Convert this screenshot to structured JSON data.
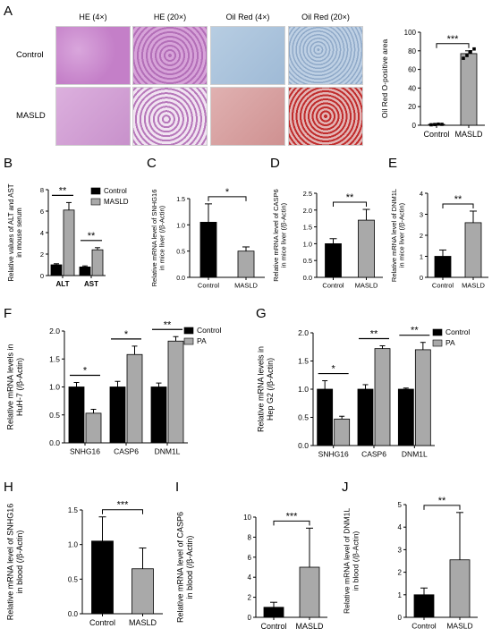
{
  "panel_letters": [
    "A",
    "B",
    "C",
    "D",
    "E",
    "F",
    "G",
    "H",
    "I",
    "J"
  ],
  "histology": {
    "columns": [
      "HE (4×)",
      "HE (20×)",
      "Oil Red (4×)",
      "Oil Red (20×)"
    ],
    "rows": [
      "Control",
      "MASLD"
    ],
    "colors": {
      "he": "#c47fc8",
      "he_dark": "#a25ea8",
      "oil_control": "#a9c3dc",
      "oil_masld": "#d9a0a0",
      "oil_masld_dot": "#c33535"
    }
  },
  "style": {
    "control_color": "#000000",
    "treated_color": "#a9a9a9"
  },
  "chart_data": [
    {
      "id": "A",
      "type": "bar",
      "categories": [
        "Control",
        "MASLD"
      ],
      "values": [
        1,
        77
      ],
      "errors": [
        0.3,
        3
      ],
      "points": [
        [
          0.5,
          0.8,
          1.2,
          1.0
        ],
        [
          72,
          75,
          79,
          82
        ]
      ],
      "ylabel": "Oil Red O-positive area",
      "ylim": [
        0,
        100
      ],
      "yticks": [
        0,
        20,
        40,
        60,
        80,
        100
      ],
      "significance": [
        {
          "from": 0,
          "to": 1,
          "label": "***"
        }
      ]
    },
    {
      "id": "B",
      "type": "bar",
      "categories": [
        "ALT",
        "AST"
      ],
      "series": [
        {
          "name": "Control",
          "values": [
            1.0,
            0.8
          ],
          "errors": [
            0.1,
            0.1
          ]
        },
        {
          "name": "MASLD",
          "values": [
            6.1,
            2.4
          ],
          "errors": [
            0.7,
            0.2
          ]
        }
      ],
      "ylabel": "Relative values of ALT and AST\nin mouse serum",
      "ylim": [
        0,
        8
      ],
      "yticks": [
        0,
        2,
        4,
        6,
        8
      ],
      "legend": "top-right",
      "significance": [
        {
          "group": 0,
          "label": "**"
        },
        {
          "group": 1,
          "label": "**"
        }
      ]
    },
    {
      "id": "C",
      "type": "bar",
      "categories": [
        "Control",
        "MASLD"
      ],
      "values": [
        1.05,
        0.5
      ],
      "errors": [
        0.35,
        0.08
      ],
      "ylabel": "Relative mRNA level of SNHG16\nin mice liver (/β-Actin)",
      "ylim": [
        0,
        1.5
      ],
      "yticks": [
        0.0,
        0.5,
        1.0,
        1.5
      ],
      "significance": [
        {
          "from": 0,
          "to": 1,
          "label": "*"
        }
      ]
    },
    {
      "id": "D",
      "type": "bar",
      "categories": [
        "Control",
        "MASLD"
      ],
      "values": [
        1.0,
        1.7
      ],
      "errors": [
        0.15,
        0.32
      ],
      "ylabel": "Relative mRNA level of CASP6\nin mice liver (/β-Actin)",
      "ylim": [
        0,
        2.5
      ],
      "yticks": [
        0.0,
        0.5,
        1.0,
        1.5,
        2.0,
        2.5
      ],
      "significance": [
        {
          "from": 0,
          "to": 1,
          "label": "**"
        }
      ]
    },
    {
      "id": "E",
      "type": "bar",
      "categories": [
        "Control",
        "MASLD"
      ],
      "values": [
        1.0,
        2.6
      ],
      "errors": [
        0.3,
        0.55
      ],
      "ylabel": "Relative mRNA level of DNM1L\nin mice liver (/β-Actin)",
      "ylim": [
        0,
        4
      ],
      "yticks": [
        0,
        1,
        2,
        3,
        4
      ],
      "significance": [
        {
          "from": 0,
          "to": 1,
          "label": "**"
        }
      ]
    },
    {
      "id": "F",
      "type": "bar",
      "categories": [
        "SNHG16",
        "CASP6",
        "DNM1L"
      ],
      "series": [
        {
          "name": "Control",
          "values": [
            1.0,
            1.0,
            1.0
          ],
          "errors": [
            0.08,
            0.1,
            0.07
          ]
        },
        {
          "name": "PA",
          "values": [
            0.53,
            1.58,
            1.82
          ],
          "errors": [
            0.07,
            0.15,
            0.08
          ]
        }
      ],
      "ylabel": "Relative mRNA levels in\nHuH-7 (/β-Actin)",
      "ylim": [
        0,
        2.0
      ],
      "yticks": [
        0.0,
        0.5,
        1.0,
        1.5,
        2.0
      ],
      "legend": "top-right",
      "significance": [
        {
          "group": 0,
          "label": "*"
        },
        {
          "group": 1,
          "label": "*"
        },
        {
          "group": 2,
          "label": "**"
        }
      ]
    },
    {
      "id": "G",
      "type": "bar",
      "categories": [
        "SNHG16",
        "CASP6",
        "DNM1L"
      ],
      "series": [
        {
          "name": "Control",
          "values": [
            1.0,
            1.0,
            1.0
          ],
          "errors": [
            0.15,
            0.08,
            0.02
          ]
        },
        {
          "name": "PA",
          "values": [
            0.47,
            1.72,
            1.7
          ],
          "errors": [
            0.05,
            0.05,
            0.13
          ]
        }
      ],
      "ylabel": "Relative mRNA levels in\nHep G2 (/β-Actin)",
      "ylim": [
        0,
        2.0
      ],
      "yticks": [
        0.0,
        0.5,
        1.0,
        1.5,
        2.0
      ],
      "legend": "top-right",
      "significance": [
        {
          "group": 0,
          "label": "*"
        },
        {
          "group": 1,
          "label": "**"
        },
        {
          "group": 2,
          "label": "**"
        }
      ]
    },
    {
      "id": "H",
      "type": "bar",
      "categories": [
        "Control",
        "MASLD"
      ],
      "values": [
        1.05,
        0.65
      ],
      "errors": [
        0.35,
        0.3
      ],
      "ylabel": "Relative mRNA level of SNHG16\nin blood (/β-Actin)",
      "ylim": [
        0,
        1.5
      ],
      "yticks": [
        0.0,
        0.5,
        1.0,
        1.5
      ],
      "significance": [
        {
          "from": 0,
          "to": 1,
          "label": "***"
        }
      ]
    },
    {
      "id": "I",
      "type": "bar",
      "categories": [
        "Control",
        "MASLD"
      ],
      "values": [
        1.0,
        5.0
      ],
      "errors": [
        0.5,
        3.9
      ],
      "ylabel": "Relative mRNA level of CASP6\nin blood (/β-Actin)",
      "ylim": [
        0,
        10
      ],
      "yticks": [
        0,
        2,
        4,
        6,
        8,
        10
      ],
      "significance": [
        {
          "from": 0,
          "to": 1,
          "label": "***"
        }
      ]
    },
    {
      "id": "J",
      "type": "bar",
      "categories": [
        "Control",
        "MASLD"
      ],
      "values": [
        1.0,
        2.55
      ],
      "errors": [
        0.3,
        2.1
      ],
      "ylabel": "Relative mRNA level of DNM1L\nin blood (/β-Actin)",
      "ylim": [
        0,
        5
      ],
      "yticks": [
        0,
        1,
        2,
        3,
        4,
        5
      ],
      "significance": [
        {
          "from": 0,
          "to": 1,
          "label": "**"
        }
      ]
    }
  ]
}
